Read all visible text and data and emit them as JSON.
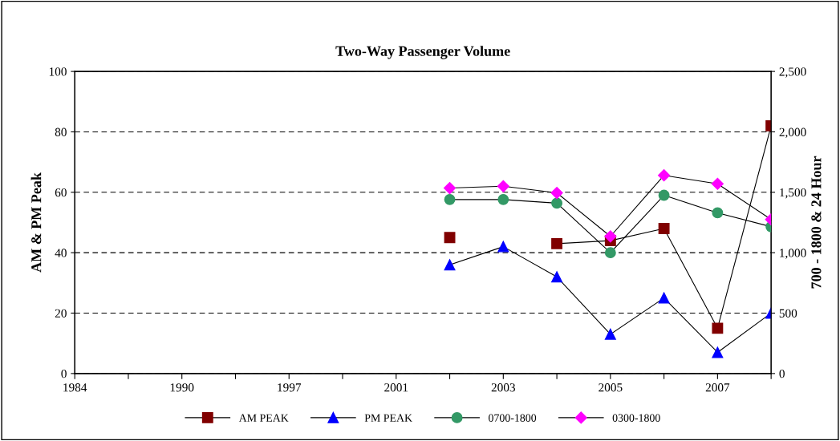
{
  "chart_data": {
    "type": "line",
    "title": "Two-Way Passenger Volume",
    "ylabel": "AM & PM Peak",
    "y2label": "700 - 1800 & 24 Hour",
    "categories": [
      "1984",
      null,
      "1990",
      null,
      "1997",
      null,
      "2001",
      null,
      "2003",
      null,
      "2005",
      null,
      "2007",
      null
    ],
    "ylim": [
      0,
      100
    ],
    "yticks": [
      0,
      20,
      40,
      60,
      80,
      100
    ],
    "y2lim": [
      0,
      2500
    ],
    "y2ticks": [
      0,
      {
        "value": 500,
        "label": "500"
      },
      {
        "value": 1000,
        "label": "1,000"
      },
      {
        "value": 1500,
        "label": "1,500"
      },
      {
        "value": 2000,
        "label": "2,000"
      },
      {
        "value": 2500,
        "label": "2,500"
      }
    ],
    "grid": "y",
    "legend": "bottom",
    "series": [
      {
        "name": "AM PEAK",
        "color": "#800000",
        "marker": "square",
        "values": [
          null,
          null,
          null,
          null,
          null,
          null,
          null,
          45,
          null,
          43,
          44,
          48,
          15,
          82
        ]
      },
      {
        "name": "PM PEAK",
        "color": "#0000ff",
        "marker": "triangle",
        "values": [
          null,
          null,
          null,
          null,
          null,
          null,
          null,
          36,
          42,
          32,
          13,
          25,
          7,
          20
        ]
      },
      {
        "name": "0700-1800",
        "color": "#339966",
        "marker": "circle",
        "axis": "y2",
        "values": [
          null,
          null,
          null,
          null,
          null,
          null,
          null,
          1440,
          1440,
          1410,
          1000,
          1475,
          1330,
          1215
        ]
      },
      {
        "name": "0300-1800",
        "color": "#ff00ff",
        "marker": "diamond",
        "axis": "y2",
        "values": [
          null,
          null,
          null,
          null,
          null,
          null,
          null,
          1535,
          1550,
          1495,
          1135,
          1640,
          1570,
          1275
        ]
      }
    ]
  }
}
